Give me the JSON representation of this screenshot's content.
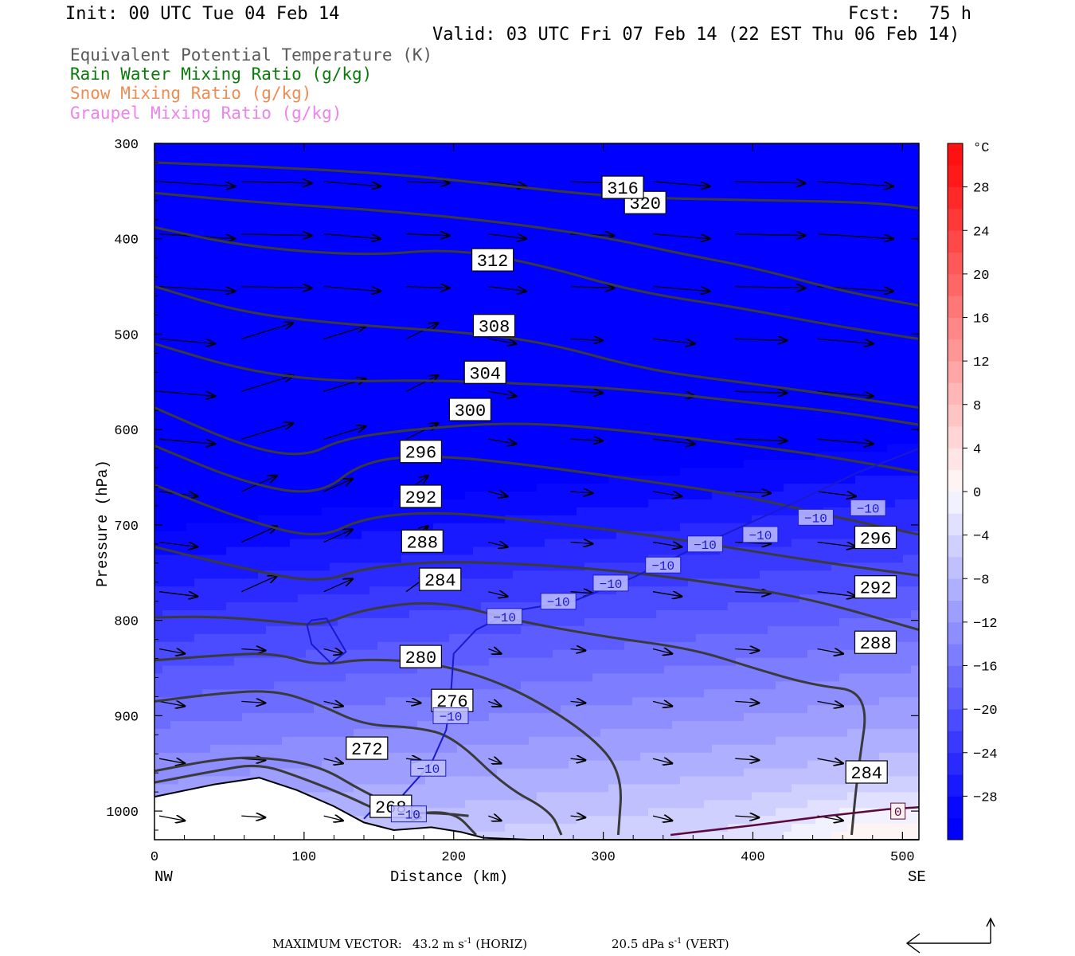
{
  "header": {
    "init": "Init: 00 UTC Tue 04 Feb 14",
    "fcst_label": "Fcst:",
    "fcst_value": "75 h",
    "valid": "Valid: 03 UTC Fri 07 Feb 14 (22 EST Thu 06 Feb 14)"
  },
  "legend": [
    {
      "label": "Equivalent Potential Temperature (K)",
      "color": "#5a5a5a"
    },
    {
      "label": "Rain Water Mixing Ratio (g/kg)",
      "color": "#0a7a0a"
    },
    {
      "label": "Snow Mixing Ratio (g/kg)",
      "color": "#f08c52"
    },
    {
      "label": "Graupel Mixing Ratio (g/kg)",
      "color": "#ee82ee"
    }
  ],
  "footer": {
    "max_vector_label": "MAXIMUM VECTOR:",
    "horiz_value": "43.2 m s",
    "horiz_exp": "-1",
    "horiz_tag": "(HORIZ)",
    "vert_value": "20.5 dPa s",
    "vert_exp": "-1",
    "vert_tag": "(VERT)"
  },
  "chart_data": {
    "type": "cross-section",
    "xlabel": "Distance (km)",
    "ylabel": "Pressure (hPa)",
    "xlim": [
      0,
      511
    ],
    "ylim": [
      1030,
      300
    ],
    "x_ticks": [
      0,
      100,
      200,
      300,
      400,
      500
    ],
    "y_ticks": [
      300,
      400,
      500,
      600,
      700,
      800,
      900,
      1000
    ],
    "x_endpoints": {
      "left": "NW",
      "right": "SE"
    },
    "colorbar": {
      "unit": "°C",
      "tick_labels": [
        "28",
        "24",
        "20",
        "16",
        "12",
        "8",
        "4",
        "0",
        "-4",
        "-8",
        "-12",
        "-16",
        "-20",
        "-24",
        "-28"
      ],
      "levels": [
        -32,
        -30,
        -28,
        -26,
        -24,
        -22,
        -20,
        -18,
        -16,
        -14,
        -12,
        -10,
        -8,
        -6,
        -4,
        -2,
        0,
        2,
        4,
        6,
        8,
        10,
        12,
        14,
        16,
        18,
        20,
        22,
        24,
        26,
        28,
        30,
        32
      ]
    },
    "theta_e_contours": [
      {
        "value": 268,
        "label": "268",
        "points": [
          [
            0,
            970
          ],
          [
            40,
            958
          ],
          [
            70,
            950
          ],
          [
            100,
            966
          ],
          [
            130,
            985
          ],
          [
            150,
            1000
          ],
          [
            170,
            1003
          ],
          [
            200,
            1000
          ],
          [
            215,
            1025
          ]
        ]
      },
      {
        "value": 272,
        "label": "272",
        "points": [
          [
            0,
            958
          ],
          [
            40,
            946
          ],
          [
            70,
            943
          ],
          [
            110,
            952
          ],
          [
            140,
            980
          ],
          [
            170,
            1002
          ],
          [
            190,
            1002
          ],
          [
            210,
            1005
          ]
        ]
      },
      {
        "value": 276,
        "label": "276",
        "points": [
          [
            0,
            885
          ],
          [
            40,
            877
          ],
          [
            80,
            873
          ],
          [
            110,
            888
          ],
          [
            140,
            910
          ],
          [
            175,
            912
          ],
          [
            200,
            922
          ],
          [
            235,
            975
          ],
          [
            265,
            1000
          ],
          [
            272,
            1025
          ]
        ]
      },
      {
        "value": 280,
        "label": "280",
        "points": [
          [
            0,
            842
          ],
          [
            40,
            837
          ],
          [
            80,
            834
          ],
          [
            110,
            848
          ],
          [
            140,
            840
          ],
          [
            190,
            845
          ],
          [
            240,
            870
          ],
          [
            290,
            918
          ],
          [
            313,
            960
          ],
          [
            310,
            1025
          ]
        ]
      },
      {
        "value": 284,
        "label": "284",
        "points": [
          [
            0,
            797
          ],
          [
            40,
            796
          ],
          [
            80,
            801
          ],
          [
            110,
            806
          ],
          [
            140,
            788
          ],
          [
            190,
            779
          ],
          [
            240,
            800
          ],
          [
            300,
            817
          ],
          [
            360,
            830
          ],
          [
            400,
            850
          ],
          [
            440,
            868
          ],
          [
            478,
            875
          ],
          [
            470,
            960
          ],
          [
            466,
            1025
          ]
        ]
      },
      {
        "value": 288,
        "label": "288",
        "points": [
          [
            0,
            723
          ],
          [
            60,
            746
          ],
          [
            110,
            761
          ],
          [
            140,
            745
          ],
          [
            190,
            738
          ],
          [
            250,
            741
          ],
          [
            310,
            748
          ],
          [
            380,
            762
          ],
          [
            440,
            778
          ],
          [
            511,
            810
          ]
        ]
      },
      {
        "value": 292,
        "label": "292",
        "points": [
          [
            0,
            658
          ],
          [
            60,
            695
          ],
          [
            110,
            715
          ],
          [
            140,
            692
          ],
          [
            190,
            686
          ],
          [
            250,
            695
          ],
          [
            320,
            708
          ],
          [
            390,
            725
          ],
          [
            450,
            740
          ],
          [
            511,
            753
          ]
        ]
      },
      {
        "value": 296,
        "label": "296",
        "points": [
          [
            0,
            617
          ],
          [
            60,
            656
          ],
          [
            110,
            670
          ],
          [
            140,
            632
          ],
          [
            190,
            627
          ],
          [
            250,
            637
          ],
          [
            320,
            652
          ],
          [
            390,
            668
          ],
          [
            450,
            690
          ],
          [
            511,
            710
          ]
        ]
      },
      {
        "value": 300,
        "label": "300",
        "points": [
          [
            0,
            577
          ],
          [
            60,
            618
          ],
          [
            100,
            629
          ],
          [
            125,
            610
          ],
          [
            170,
            600
          ],
          [
            240,
            592
          ],
          [
            310,
            600
          ],
          [
            390,
            615
          ],
          [
            450,
            628
          ],
          [
            511,
            645
          ]
        ]
      },
      {
        "value": 304,
        "label": "304",
        "points": [
          [
            0,
            510
          ],
          [
            60,
            538
          ],
          [
            120,
            550
          ],
          [
            180,
            548
          ],
          [
            250,
            552
          ],
          [
            320,
            558
          ],
          [
            400,
            572
          ],
          [
            460,
            582
          ],
          [
            511,
            595
          ]
        ]
      },
      {
        "value": 308,
        "label": "308",
        "points": [
          [
            0,
            450
          ],
          [
            60,
            478
          ],
          [
            130,
            490
          ],
          [
            200,
            497
          ],
          [
            260,
            508
          ],
          [
            330,
            538
          ],
          [
            400,
            552
          ],
          [
            460,
            565
          ],
          [
            511,
            577
          ]
        ]
      },
      {
        "value": 312,
        "label": "312",
        "points": [
          [
            0,
            388
          ],
          [
            60,
            408
          ],
          [
            140,
            418
          ],
          [
            200,
            410
          ],
          [
            260,
            428
          ],
          [
            320,
            455
          ],
          [
            390,
            472
          ],
          [
            450,
            490
          ],
          [
            511,
            505
          ]
        ]
      },
      {
        "value": 316,
        "label": "316",
        "points": [
          [
            0,
            352
          ],
          [
            70,
            362
          ],
          [
            150,
            370
          ],
          [
            230,
            382
          ],
          [
            300,
            398
          ],
          [
            350,
            415
          ],
          [
            400,
            430
          ],
          [
            460,
            455
          ],
          [
            511,
            470
          ]
        ]
      },
      {
        "value": 320,
        "label": "320",
        "points": [
          [
            0,
            320
          ],
          [
            80,
            325
          ],
          [
            160,
            332
          ],
          [
            240,
            345
          ],
          [
            300,
            355
          ],
          [
            350,
            358
          ],
          [
            420,
            360
          ],
          [
            480,
            362
          ],
          [
            511,
            368
          ]
        ]
      }
    ],
    "isotherms": [
      {
        "value": -10,
        "label": "-10",
        "color": "#1a1acc",
        "labels_at": [
          [
            234,
            796
          ],
          [
            270,
            780
          ],
          [
            305,
            761
          ],
          [
            340,
            742
          ],
          [
            368,
            720
          ],
          [
            405,
            710
          ],
          [
            442,
            692
          ],
          [
            477,
            682
          ],
          [
            198,
            900
          ],
          [
            183,
            955
          ],
          [
            170,
            1003
          ]
        ]
      },
      {
        "value": 0,
        "label": "0",
        "color": "#5a0a3c",
        "labels_at": [
          [
            497,
            1000
          ]
        ]
      }
    ],
    "theta_e_label_positions": [
      [
        158,
        995
      ],
      [
        142,
        934
      ],
      [
        199,
        884
      ],
      [
        178,
        838
      ],
      [
        191,
        757
      ],
      [
        179,
        717
      ],
      [
        178,
        670
      ],
      [
        178,
        623
      ],
      [
        211,
        579
      ],
      [
        221,
        540
      ],
      [
        227,
        491
      ],
      [
        226,
        422
      ],
      [
        328,
        362
      ],
      [
        476,
        959
      ],
      [
        482,
        823
      ],
      [
        482,
        765
      ],
      [
        482,
        713
      ]
    ],
    "wind_vectors_note": "circulation vectors: westerly flow strengthening with height, ascent near 100-170 km mid-levels"
  }
}
